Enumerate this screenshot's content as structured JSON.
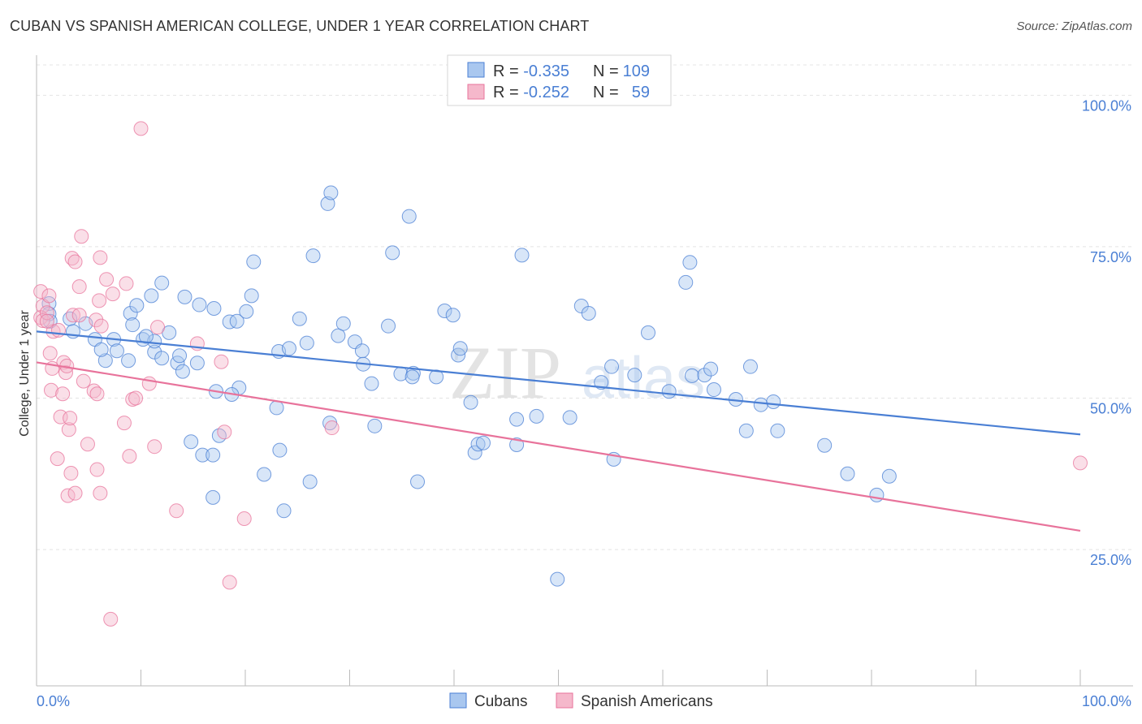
{
  "title": "CUBAN VS SPANISH AMERICAN COLLEGE, UNDER 1 YEAR CORRELATION CHART",
  "source": "Source: ZipAtlas.com",
  "watermark": {
    "zip": "ZIP",
    "atlas": "atlas"
  },
  "legend": {
    "rows": [
      {
        "r_label": "R = ",
        "r_value": "-0.335",
        "n_label": "N = ",
        "n_value": "109",
        "color": "#a9c7ef"
      },
      {
        "r_label": "R = ",
        "r_value": "-0.252",
        "n_label": "N = ",
        "n_value": "59",
        "color": "#f5b8cb"
      }
    ]
  },
  "bottom_legend": [
    "Cubans",
    "Spanish Americans"
  ],
  "chart_data": {
    "type": "scatter",
    "ylabel": "College, Under 1 year",
    "xlabel": "",
    "x_tick_labels": [
      "0.0%",
      "100.0%"
    ],
    "y_tick_labels": [
      "100.0%",
      "75.0%",
      "50.0%",
      "25.0%"
    ],
    "y_ticks": [
      100,
      75,
      50,
      25
    ],
    "xlim": [
      0,
      100
    ],
    "ylim": [
      2.5,
      105
    ],
    "grid": true,
    "legend_position": "top-center",
    "series": [
      {
        "name": "Cubans",
        "color": "#4a7fd4",
        "fill": "#a9c7ef",
        "trend": {
          "x": [
            0,
            100
          ],
          "y": [
            61.0,
            44.0
          ]
        },
        "points": [
          [
            1.2,
            65.6
          ],
          [
            1.2,
            63.9
          ],
          [
            1.3,
            62.7
          ],
          [
            3.2,
            63.1
          ],
          [
            4.7,
            62.3
          ],
          [
            3.5,
            61.0
          ],
          [
            5.6,
            59.7
          ],
          [
            7.4,
            59.7
          ],
          [
            9.0,
            64.0
          ],
          [
            7.7,
            57.8
          ],
          [
            6.6,
            56.2
          ],
          [
            8.8,
            56.2
          ],
          [
            9.2,
            62.1
          ],
          [
            10.2,
            59.7
          ],
          [
            11.3,
            57.6
          ],
          [
            12.0,
            56.6
          ],
          [
            9.6,
            65.3
          ],
          [
            11.0,
            66.9
          ],
          [
            12.0,
            69.0
          ],
          [
            11.3,
            59.4
          ],
          [
            12.7,
            60.8
          ],
          [
            13.5,
            55.8
          ],
          [
            13.7,
            57.0
          ],
          [
            14.0,
            54.4
          ],
          [
            14.2,
            66.7
          ],
          [
            15.4,
            55.8
          ],
          [
            15.6,
            65.4
          ],
          [
            17.0,
            64.8
          ],
          [
            18.5,
            62.6
          ],
          [
            19.2,
            62.7
          ],
          [
            20.8,
            72.5
          ],
          [
            20.6,
            66.9
          ],
          [
            20.1,
            64.3
          ],
          [
            19.4,
            51.7
          ],
          [
            17.2,
            51.1
          ],
          [
            18.7,
            50.6
          ],
          [
            14.8,
            42.8
          ],
          [
            15.9,
            40.6
          ],
          [
            16.9,
            40.6
          ],
          [
            17.5,
            43.8
          ],
          [
            16.9,
            33.6
          ],
          [
            21.8,
            37.4
          ],
          [
            23.0,
            48.4
          ],
          [
            23.3,
            41.4
          ],
          [
            23.7,
            31.4
          ],
          [
            23.2,
            57.7
          ],
          [
            24.2,
            58.2
          ],
          [
            25.2,
            63.1
          ],
          [
            25.9,
            59.1
          ],
          [
            26.5,
            73.5
          ],
          [
            27.9,
            82.1
          ],
          [
            28.2,
            83.9
          ],
          [
            28.1,
            45.9
          ],
          [
            28.9,
            60.3
          ],
          [
            29.4,
            62.3
          ],
          [
            30.5,
            59.3
          ],
          [
            31.2,
            57.8
          ],
          [
            31.3,
            55.6
          ],
          [
            32.1,
            52.4
          ],
          [
            32.4,
            45.4
          ],
          [
            33.7,
            61.9
          ],
          [
            34.1,
            74.0
          ],
          [
            34.9,
            54.0
          ],
          [
            35.7,
            80.0
          ],
          [
            36.1,
            54.1
          ],
          [
            36.0,
            53.5
          ],
          [
            38.3,
            53.5
          ],
          [
            39.1,
            64.4
          ],
          [
            39.9,
            63.7
          ],
          [
            40.4,
            57.1
          ],
          [
            40.6,
            58.2
          ],
          [
            41.6,
            49.3
          ],
          [
            42.0,
            41.0
          ],
          [
            42.3,
            42.4
          ],
          [
            42.8,
            42.6
          ],
          [
            46.0,
            46.5
          ],
          [
            46.0,
            42.3
          ],
          [
            46.5,
            73.6
          ],
          [
            47.9,
            47.0
          ],
          [
            49.9,
            20.1
          ],
          [
            51.1,
            46.8
          ],
          [
            52.2,
            65.2
          ],
          [
            52.9,
            64.0
          ],
          [
            54.1,
            52.6
          ],
          [
            55.1,
            55.2
          ],
          [
            55.3,
            39.9
          ],
          [
            57.3,
            53.8
          ],
          [
            58.6,
            60.8
          ],
          [
            60.6,
            51.1
          ],
          [
            62.2,
            69.1
          ],
          [
            62.6,
            72.4
          ],
          [
            62.8,
            53.7
          ],
          [
            64.0,
            53.8
          ],
          [
            64.6,
            54.8
          ],
          [
            64.9,
            51.4
          ],
          [
            67.0,
            49.8
          ],
          [
            68.0,
            44.6
          ],
          [
            68.4,
            55.2
          ],
          [
            69.4,
            48.9
          ],
          [
            70.6,
            49.4
          ],
          [
            71.0,
            44.6
          ],
          [
            75.5,
            42.2
          ],
          [
            77.7,
            37.5
          ],
          [
            81.7,
            37.1
          ],
          [
            80.5,
            34.0
          ],
          [
            36.5,
            36.2
          ],
          [
            6.2,
            58.0
          ],
          [
            10.5,
            60.2
          ],
          [
            26.2,
            36.2
          ]
        ]
      },
      {
        "name": "Spanish Americans",
        "color": "#e8739b",
        "fill": "#f5b8cb",
        "trend": {
          "x": [
            0,
            100
          ],
          "y": [
            55.9,
            28.1
          ]
        },
        "points": [
          [
            0.4,
            67.6
          ],
          [
            0.6,
            65.2
          ],
          [
            0.4,
            63.3
          ],
          [
            0.6,
            62.8
          ],
          [
            1.0,
            64.1
          ],
          [
            1.2,
            66.9
          ],
          [
            1.6,
            61.0
          ],
          [
            2.1,
            61.2
          ],
          [
            1.3,
            57.4
          ],
          [
            1.5,
            54.9
          ],
          [
            1.4,
            51.3
          ],
          [
            2.0,
            40.0
          ],
          [
            2.3,
            46.9
          ],
          [
            2.5,
            50.7
          ],
          [
            2.6,
            55.9
          ],
          [
            2.8,
            54.2
          ],
          [
            2.9,
            55.3
          ],
          [
            3.1,
            44.8
          ],
          [
            3.2,
            46.7
          ],
          [
            3.0,
            33.9
          ],
          [
            3.3,
            37.6
          ],
          [
            3.4,
            73.1
          ],
          [
            3.5,
            63.7
          ],
          [
            3.7,
            72.5
          ],
          [
            3.7,
            34.3
          ],
          [
            4.1,
            68.4
          ],
          [
            4.1,
            63.7
          ],
          [
            4.3,
            76.7
          ],
          [
            4.5,
            52.8
          ],
          [
            4.9,
            42.4
          ],
          [
            5.5,
            51.2
          ],
          [
            5.7,
            62.9
          ],
          [
            5.8,
            50.7
          ],
          [
            5.8,
            38.2
          ],
          [
            6.0,
            66.1
          ],
          [
            6.1,
            73.2
          ],
          [
            6.2,
            61.9
          ],
          [
            6.1,
            34.3
          ],
          [
            6.7,
            69.6
          ],
          [
            7.3,
            67.2
          ],
          [
            7.1,
            13.5
          ],
          [
            8.4,
            45.9
          ],
          [
            8.6,
            68.9
          ],
          [
            8.9,
            40.4
          ],
          [
            9.2,
            49.8
          ],
          [
            9.5,
            50.0
          ],
          [
            10.0,
            94.5
          ],
          [
            10.8,
            52.4
          ],
          [
            11.3,
            42.0
          ],
          [
            11.6,
            61.7
          ],
          [
            13.4,
            31.4
          ],
          [
            15.4,
            59.0
          ],
          [
            17.7,
            56.0
          ],
          [
            18.0,
            44.4
          ],
          [
            18.5,
            19.6
          ],
          [
            19.9,
            30.1
          ],
          [
            28.3,
            45.1
          ],
          [
            100.0,
            39.3
          ],
          [
            1.0,
            62.7
          ]
        ]
      }
    ]
  }
}
